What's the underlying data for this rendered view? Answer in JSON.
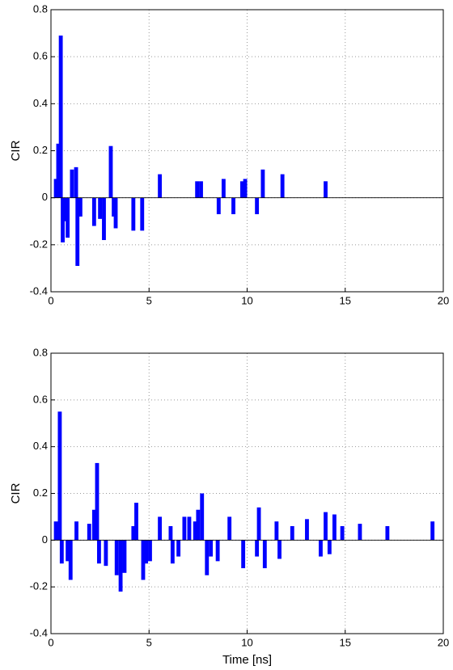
{
  "chart_data": [
    {
      "type": "bar",
      "ylabel": "CIR",
      "color": "#0000ff",
      "grid": true,
      "x": [
        0.25,
        0.37,
        0.5,
        0.6,
        0.75,
        0.85,
        1.07,
        1.28,
        1.35,
        1.5,
        2.2,
        2.5,
        2.7,
        3.05,
        3.2,
        3.3,
        4.2,
        4.65,
        5.55,
        7.45,
        7.65,
        8.55,
        8.8,
        9.3,
        9.75,
        9.9,
        10.5,
        10.8,
        11.8,
        14.0
      ],
      "values": [
        0.08,
        0.23,
        0.69,
        -0.19,
        -0.1,
        -0.17,
        0.12,
        0.13,
        -0.29,
        -0.08,
        -0.12,
        -0.09,
        -0.18,
        0.22,
        -0.08,
        -0.13,
        -0.14,
        -0.14,
        0.1,
        0.07,
        0.07,
        -0.07,
        0.08,
        -0.07,
        0.07,
        0.08,
        -0.07,
        0.12,
        0.1,
        0.07
      ],
      "xlim": [
        0,
        20
      ],
      "xticks": [
        0,
        5,
        10,
        15,
        20
      ],
      "ylim": [
        -0.4,
        0.8
      ],
      "yticks": [
        -0.4,
        -0.2,
        0,
        0.2,
        0.4,
        0.6,
        0.8
      ]
    },
    {
      "type": "bar",
      "ylabel": "CIR",
      "xlabel": "Time [ns]",
      "color": "#0000ff",
      "grid": true,
      "x": [
        0.25,
        0.45,
        0.55,
        0.85,
        1.0,
        1.3,
        1.95,
        2.2,
        2.35,
        2.45,
        2.8,
        3.35,
        3.55,
        3.75,
        4.2,
        4.35,
        4.7,
        4.85,
        5.05,
        5.55,
        6.1,
        6.2,
        6.5,
        6.8,
        7.05,
        7.35,
        7.5,
        7.7,
        7.95,
        8.15,
        8.5,
        9.1,
        9.8,
        10.5,
        10.6,
        10.9,
        11.5,
        11.65,
        12.3,
        13.05,
        13.75,
        14.0,
        14.2,
        14.45,
        14.85,
        15.75,
        17.15,
        19.45
      ],
      "values": [
        0.08,
        0.55,
        -0.1,
        -0.09,
        -0.17,
        0.08,
        0.07,
        0.13,
        0.33,
        -0.1,
        -0.11,
        -0.15,
        -0.22,
        -0.14,
        0.06,
        0.16,
        -0.17,
        -0.1,
        -0.09,
        0.1,
        0.06,
        -0.1,
        -0.07,
        0.1,
        0.1,
        0.08,
        0.13,
        0.2,
        -0.15,
        -0.07,
        -0.09,
        0.1,
        -0.12,
        -0.07,
        0.14,
        -0.12,
        0.08,
        -0.08,
        0.06,
        0.09,
        -0.07,
        0.12,
        -0.06,
        0.11,
        0.06,
        0.07,
        0.06,
        0.08
      ],
      "xlim": [
        0,
        20
      ],
      "xticks": [
        0,
        5,
        10,
        15,
        20
      ],
      "ylim": [
        -0.4,
        0.8
      ],
      "yticks": [
        -0.4,
        -0.2,
        0,
        0.2,
        0.4,
        0.6,
        0.8
      ]
    }
  ]
}
